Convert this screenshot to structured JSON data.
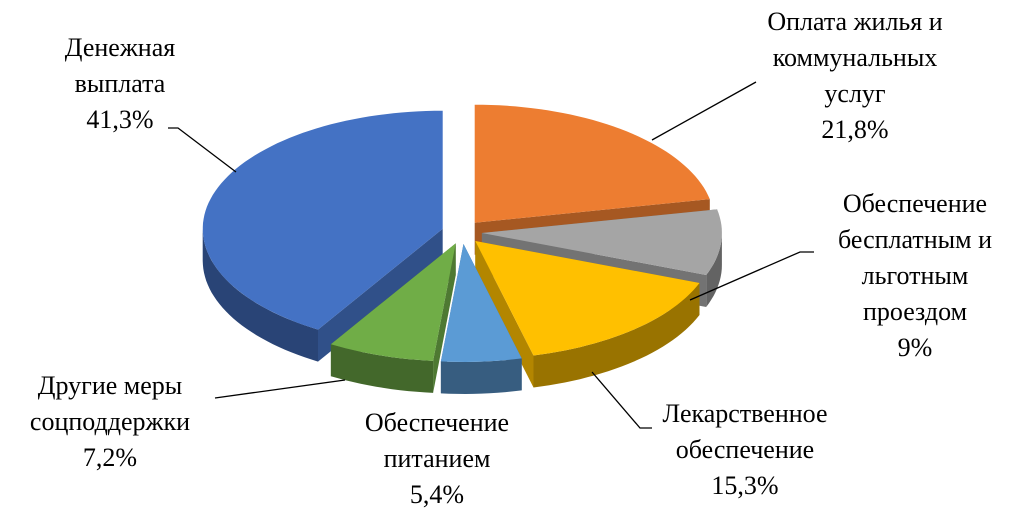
{
  "chart_data": {
    "type": "pie",
    "categories": [
      "Денежная\nвыплата",
      "Оплата жилья и\nкоммунальных\nуслуг",
      "Обеспечение\nбесплатным и\nльготным\nпроездом",
      "Лекарственное\nобеспечение",
      "Обеспечение\nпитанием",
      "Другие меры\nсоцподдержки"
    ],
    "values": [
      41.3,
      21.8,
      9,
      15.3,
      5.4,
      7.2
    ],
    "value_labels": [
      "41,3%",
      "21,8%",
      "9%",
      "15,3%",
      "5,4%",
      "7,2%"
    ],
    "colors": [
      "#4472c4",
      "#ed7d31",
      "#a5a5a5",
      "#ffc000",
      "#5b9bd5",
      "#70ad47"
    ]
  }
}
